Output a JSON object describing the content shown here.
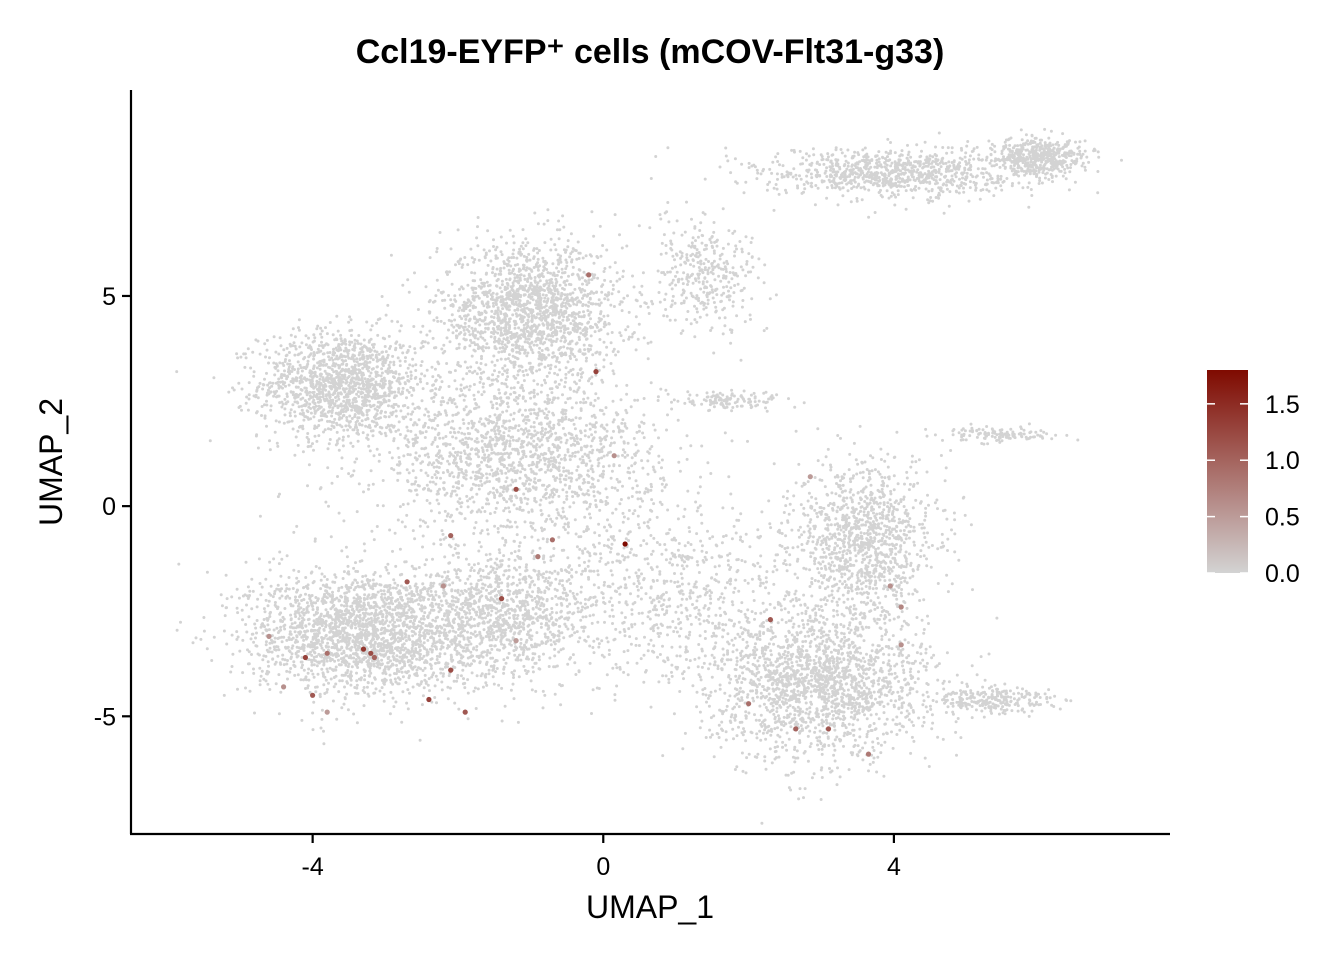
{
  "chart_data": {
    "type": "scatter",
    "title": "Ccl19-EYFP⁺ cells (mCOV-Flt31-g33)",
    "xlabel": "UMAP_1",
    "ylabel": "UMAP_2",
    "xlim": [
      -6.5,
      7.8
    ],
    "ylim": [
      -7.8,
      9.9
    ],
    "x_ticks": [
      -4,
      0,
      4
    ],
    "x_tick_labels": [
      "-4",
      "0",
      "4"
    ],
    "y_ticks": [
      -5,
      0,
      5
    ],
    "y_tick_labels": [
      "-5",
      "0",
      "5"
    ],
    "grid": false,
    "legend": {
      "placement": "right",
      "type": "colorbar",
      "min": 0.0,
      "max": 1.8,
      "ticks": [
        0.0,
        0.5,
        1.0,
        1.5
      ],
      "tick_labels": [
        "0.0",
        "0.5",
        "1.0",
        "1.5"
      ],
      "low_color": "#d3d3d3",
      "high_color": "#7f0a00"
    },
    "background_point_color": "#d3d3d3",
    "regions": [
      {
        "name": "left-upper",
        "cx": -3.6,
        "cy": 2.9,
        "sx": 0.75,
        "sy": 0.85,
        "n": 1400
      },
      {
        "name": "top-center",
        "cx": -1.0,
        "cy": 4.6,
        "sx": 0.85,
        "sy": 1.1,
        "n": 1700
      },
      {
        "name": "center",
        "cx": -1.2,
        "cy": 1.2,
        "sx": 1.3,
        "sy": 1.3,
        "n": 1700
      },
      {
        "name": "left-lower",
        "cx": -3.3,
        "cy": -3.0,
        "sx": 1.05,
        "sy": 1.0,
        "n": 2200
      },
      {
        "name": "mid-lower",
        "cx": -1.3,
        "cy": -2.6,
        "sx": 0.8,
        "sy": 1.0,
        "n": 1000
      },
      {
        "name": "right-lower",
        "cx": 3.0,
        "cy": -4.2,
        "sx": 1.0,
        "sy": 1.2,
        "n": 1900
      },
      {
        "name": "right-mid",
        "cx": 3.6,
        "cy": -0.8,
        "sx": 0.65,
        "sy": 1.2,
        "n": 1100
      },
      {
        "name": "center-sparse",
        "cx": 0.9,
        "cy": -2.0,
        "sx": 1.2,
        "sy": 1.5,
        "n": 700
      },
      {
        "name": "top-right-arm",
        "cx": 4.0,
        "cy": 7.9,
        "sx": 1.2,
        "sy": 0.4,
        "n": 900
      },
      {
        "name": "top-right-tip",
        "cx": 6.0,
        "cy": 8.3,
        "sx": 0.45,
        "sy": 0.3,
        "n": 500
      },
      {
        "name": "upper-stream",
        "cx": 1.4,
        "cy": 5.5,
        "sx": 0.5,
        "sy": 0.9,
        "n": 350
      },
      {
        "name": "small-mid",
        "cx": 1.8,
        "cy": 2.5,
        "sx": 0.5,
        "sy": 0.15,
        "n": 120
      },
      {
        "name": "right-thin",
        "cx": 5.5,
        "cy": 1.7,
        "sx": 0.5,
        "sy": 0.12,
        "n": 120
      },
      {
        "name": "bottom-right-arm",
        "cx": 5.4,
        "cy": -4.6,
        "sx": 0.6,
        "sy": 0.2,
        "n": 250
      }
    ],
    "highlighted_points": [
      {
        "x": -0.2,
        "y": 5.5,
        "value": 0.9
      },
      {
        "x": -0.1,
        "y": 3.2,
        "value": 1.3
      },
      {
        "x": 0.15,
        "y": 1.2,
        "value": 0.6
      },
      {
        "x": -1.2,
        "y": 0.4,
        "value": 1.2
      },
      {
        "x": 2.85,
        "y": 0.7,
        "value": 0.5
      },
      {
        "x": 0.3,
        "y": -0.9,
        "value": 1.8
      },
      {
        "x": -0.7,
        "y": -0.8,
        "value": 0.9
      },
      {
        "x": -0.9,
        "y": -1.2,
        "value": 0.8
      },
      {
        "x": -2.1,
        "y": -0.7,
        "value": 1.0
      },
      {
        "x": -2.7,
        "y": -1.8,
        "value": 1.1
      },
      {
        "x": -2.2,
        "y": -1.9,
        "value": 0.6
      },
      {
        "x": -1.4,
        "y": -2.2,
        "value": 1.2
      },
      {
        "x": -1.2,
        "y": -3.2,
        "value": 0.5
      },
      {
        "x": -4.6,
        "y": -3.1,
        "value": 0.6
      },
      {
        "x": -4.1,
        "y": -3.6,
        "value": 1.3
      },
      {
        "x": -3.8,
        "y": -3.5,
        "value": 0.9
      },
      {
        "x": -3.3,
        "y": -3.4,
        "value": 1.4
      },
      {
        "x": -3.2,
        "y": -3.5,
        "value": 1.2
      },
      {
        "x": -3.15,
        "y": -3.6,
        "value": 1.0
      },
      {
        "x": -2.1,
        "y": -3.9,
        "value": 1.2
      },
      {
        "x": -4.0,
        "y": -4.5,
        "value": 1.1
      },
      {
        "x": -4.4,
        "y": -4.3,
        "value": 0.6
      },
      {
        "x": -3.8,
        "y": -4.9,
        "value": 0.5
      },
      {
        "x": -2.4,
        "y": -4.6,
        "value": 1.3
      },
      {
        "x": -1.9,
        "y": -4.9,
        "value": 1.1
      },
      {
        "x": 2.3,
        "y": -2.7,
        "value": 1.1
      },
      {
        "x": 2.0,
        "y": -4.7,
        "value": 0.9
      },
      {
        "x": 2.65,
        "y": -5.3,
        "value": 1.0
      },
      {
        "x": 3.1,
        "y": -5.3,
        "value": 1.1
      },
      {
        "x": 3.65,
        "y": -5.9,
        "value": 0.8
      },
      {
        "x": 3.95,
        "y": -1.9,
        "value": 0.6
      },
      {
        "x": 4.1,
        "y": -2.4,
        "value": 0.7
      },
      {
        "x": 4.1,
        "y": -3.3,
        "value": 0.6
      }
    ]
  }
}
